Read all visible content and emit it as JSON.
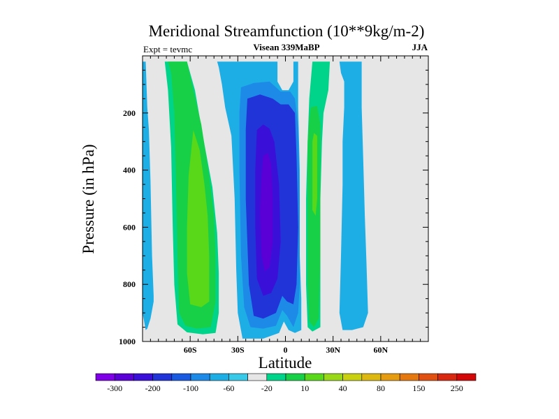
{
  "chart_data": {
    "type": "heatmap",
    "title": "Meridional Streamfunction (10**9kg/m-2)",
    "subtitle_left": "Expt = tevmc",
    "subtitle_center": "Visean 339MaBP",
    "subtitle_right": "JJA",
    "xlabel": "Latitude",
    "ylabel": "Pressure (in hPa)",
    "xlim": [
      -90,
      90
    ],
    "ylim": [
      1000,
      0
    ],
    "x_ticks": [
      {
        "value": -60,
        "label": "60S"
      },
      {
        "value": -30,
        "label": "30S"
      },
      {
        "value": 0,
        "label": "0"
      },
      {
        "value": 30,
        "label": "30N"
      },
      {
        "value": 60,
        "label": "60N"
      }
    ],
    "y_ticks": [
      {
        "value": 200,
        "label": "200"
      },
      {
        "value": 400,
        "label": "400"
      },
      {
        "value": 600,
        "label": "600"
      },
      {
        "value": 800,
        "label": "800"
      },
      {
        "value": 1000,
        "label": "1000"
      }
    ],
    "colorbar": {
      "labels": [
        "-300",
        "-200",
        "-100",
        "-60",
        "-20",
        "10",
        "40",
        "80",
        "150",
        "250"
      ],
      "colors": [
        "#7f00e6",
        "#5a00d6",
        "#3a10d8",
        "#2034d8",
        "#1a5ae0",
        "#1e8ae8",
        "#1eaee6",
        "#38c8e8",
        "#e6e6e6",
        "#00d48a",
        "#18d048",
        "#58d818",
        "#98d818",
        "#c8d010",
        "#dcb810",
        "#e69c10",
        "#e67810",
        "#e05010",
        "#d82810",
        "#d20808"
      ]
    },
    "contour_regions": [
      {
        "name": "sh-ferrel-outer",
        "level": "-20",
        "color": "#1eaee6",
        "points": [
          [
            -90,
            20
          ],
          [
            -88,
            20
          ],
          [
            -87,
            180
          ],
          [
            -86,
            260
          ],
          [
            -85,
            440
          ],
          [
            -84,
            700
          ],
          [
            -83,
            840
          ],
          [
            -83,
            860
          ],
          [
            -85,
            920
          ],
          [
            -87,
            955
          ],
          [
            -88,
            960
          ],
          [
            -89,
            930
          ],
          [
            -90,
            900
          ]
        ]
      },
      {
        "name": "sh-cell-10",
        "level": "10",
        "color": "#00d48a",
        "points": [
          [
            -76,
            20
          ],
          [
            -62,
            20
          ],
          [
            -57,
            120
          ],
          [
            -52,
            280
          ],
          [
            -46,
            460
          ],
          [
            -43,
            620
          ],
          [
            -42,
            760
          ],
          [
            -42,
            900
          ],
          [
            -44,
            970
          ],
          [
            -52,
            975
          ],
          [
            -62,
            968
          ],
          [
            -68,
            940
          ],
          [
            -70,
            800
          ],
          [
            -71,
            600
          ],
          [
            -72,
            320
          ],
          [
            -74,
            120
          ]
        ]
      },
      {
        "name": "sh-cell-40",
        "level": "40",
        "color": "#18d048",
        "points": [
          [
            -74,
            20
          ],
          [
            -62,
            20
          ],
          [
            -58,
            120
          ],
          [
            -53,
            240
          ],
          [
            -48,
            420
          ],
          [
            -45,
            560
          ],
          [
            -44,
            700
          ],
          [
            -44,
            860
          ],
          [
            -47,
            950
          ],
          [
            -56,
            955
          ],
          [
            -63,
            945
          ],
          [
            -67,
            900
          ],
          [
            -68,
            700
          ],
          [
            -69,
            420
          ],
          [
            -70,
            200
          ],
          [
            -72,
            60
          ]
        ]
      },
      {
        "name": "sh-cell-80",
        "level": "80",
        "color": "#58d818",
        "points": [
          [
            -61,
            420
          ],
          [
            -58,
            260
          ],
          [
            -54,
            330
          ],
          [
            -51,
            450
          ],
          [
            -49,
            560
          ],
          [
            -48,
            700
          ],
          [
            -48,
            860
          ],
          [
            -53,
            880
          ],
          [
            -60,
            870
          ],
          [
            -62,
            760
          ],
          [
            -62,
            600
          ]
        ]
      },
      {
        "name": "hadley-m20",
        "level": "-20",
        "color": "#1eaee6",
        "points": [
          [
            -43,
            20
          ],
          [
            -5,
            20
          ],
          [
            -5,
            90
          ],
          [
            -2,
            120
          ],
          [
            2,
            120
          ],
          [
            5,
            90
          ],
          [
            5,
            20
          ],
          [
            8,
            20
          ],
          [
            8,
            180
          ],
          [
            9,
            400
          ],
          [
            9,
            700
          ],
          [
            10,
            850
          ],
          [
            10,
            960
          ],
          [
            6,
            970
          ],
          [
            2,
            960
          ],
          [
            -1,
            930
          ],
          [
            -4,
            970
          ],
          [
            -14,
            990
          ],
          [
            -27,
            990
          ],
          [
            -30,
            900
          ],
          [
            -31,
            750
          ],
          [
            -32,
            500
          ],
          [
            -34,
            280
          ],
          [
            -38,
            180
          ],
          [
            -40,
            100
          ],
          [
            -42,
            40
          ]
        ]
      },
      {
        "name": "hadley-m60",
        "level": "-60",
        "color": "#1e8ae8",
        "points": [
          [
            -28,
            110
          ],
          [
            -20,
            95
          ],
          [
            -10,
            90
          ],
          [
            -3,
            125
          ],
          [
            3,
            125
          ],
          [
            6,
            150
          ],
          [
            8,
            250
          ],
          [
            9,
            500
          ],
          [
            9,
            800
          ],
          [
            8,
            900
          ],
          [
            5,
            950
          ],
          [
            1,
            910
          ],
          [
            -2,
            890
          ],
          [
            -6,
            945
          ],
          [
            -14,
            955
          ],
          [
            -22,
            950
          ],
          [
            -26,
            880
          ],
          [
            -28,
            700
          ],
          [
            -29,
            400
          ],
          [
            -29,
            200
          ]
        ]
      },
      {
        "name": "hadley-m100",
        "level": "-100",
        "color": "#2034d8",
        "points": [
          [
            -24,
            150
          ],
          [
            -16,
            135
          ],
          [
            -8,
            150
          ],
          [
            -3,
            170
          ],
          [
            2,
            170
          ],
          [
            6,
            200
          ],
          [
            7,
            350
          ],
          [
            8,
            600
          ],
          [
            7,
            800
          ],
          [
            5,
            870
          ],
          [
            1,
            860
          ],
          [
            -2,
            840
          ],
          [
            -6,
            900
          ],
          [
            -14,
            920
          ],
          [
            -20,
            910
          ],
          [
            -23,
            800
          ],
          [
            -25,
            500
          ],
          [
            -25,
            260
          ]
        ]
      },
      {
        "name": "hadley-m200",
        "level": "-200",
        "color": "#3a10d8",
        "points": [
          [
            -18,
            260
          ],
          [
            -14,
            240
          ],
          [
            -10,
            255
          ],
          [
            -7,
            300
          ],
          [
            -4,
            450
          ],
          [
            -3,
            650
          ],
          [
            -5,
            780
          ],
          [
            -9,
            830
          ],
          [
            -14,
            840
          ],
          [
            -18,
            780
          ],
          [
            -19,
            600
          ],
          [
            -19,
            400
          ]
        ]
      },
      {
        "name": "hadley-m300",
        "level": "-300",
        "color": "#5a00d6",
        "points": [
          [
            -14,
            350
          ],
          [
            -11,
            340
          ],
          [
            -9,
            380
          ],
          [
            -8,
            500
          ],
          [
            -8,
            650
          ],
          [
            -10,
            740
          ],
          [
            -13,
            755
          ],
          [
            -15,
            700
          ],
          [
            -16,
            550
          ],
          [
            -15,
            420
          ]
        ]
      },
      {
        "name": "nh-cell-10",
        "level": "10",
        "color": "#00d48a",
        "points": [
          [
            17,
            20
          ],
          [
            28,
            20
          ],
          [
            27,
            120
          ],
          [
            24,
            200
          ],
          [
            23,
            300
          ],
          [
            22,
            500
          ],
          [
            22,
            700
          ],
          [
            22,
            950
          ],
          [
            17,
            965
          ],
          [
            14,
            950
          ],
          [
            13,
            800
          ],
          [
            13,
            500
          ],
          [
            14,
            300
          ],
          [
            15,
            150
          ]
        ]
      },
      {
        "name": "nh-cell-40",
        "level": "40",
        "color": "#18d048",
        "points": [
          [
            16,
            180
          ],
          [
            20,
            175
          ],
          [
            22,
            240
          ],
          [
            22,
            450
          ],
          [
            22,
            700
          ],
          [
            21,
            920
          ],
          [
            18,
            950
          ],
          [
            15,
            930
          ],
          [
            14,
            800
          ],
          [
            14,
            500
          ],
          [
            14,
            300
          ],
          [
            15,
            220
          ]
        ]
      },
      {
        "name": "nh-cell-80",
        "level": "80",
        "color": "#58d818",
        "points": [
          [
            18,
            270
          ],
          [
            20,
            280
          ],
          [
            20,
            400
          ],
          [
            20,
            500
          ],
          [
            19,
            560
          ],
          [
            17,
            540
          ],
          [
            17,
            400
          ],
          [
            17,
            300
          ]
        ]
      },
      {
        "name": "nh-ferrel",
        "level": "-20",
        "color": "#1eaee6",
        "points": [
          [
            34,
            20
          ],
          [
            48,
            20
          ],
          [
            48,
            180
          ],
          [
            49,
            360
          ],
          [
            50,
            560
          ],
          [
            51,
            720
          ],
          [
            52,
            900
          ],
          [
            49,
            950
          ],
          [
            42,
            960
          ],
          [
            36,
            960
          ],
          [
            34,
            900
          ],
          [
            35,
            700
          ],
          [
            36,
            450
          ],
          [
            36,
            300
          ],
          [
            37,
            180
          ],
          [
            37,
            90
          ],
          [
            35,
            60
          ]
        ]
      }
    ]
  }
}
